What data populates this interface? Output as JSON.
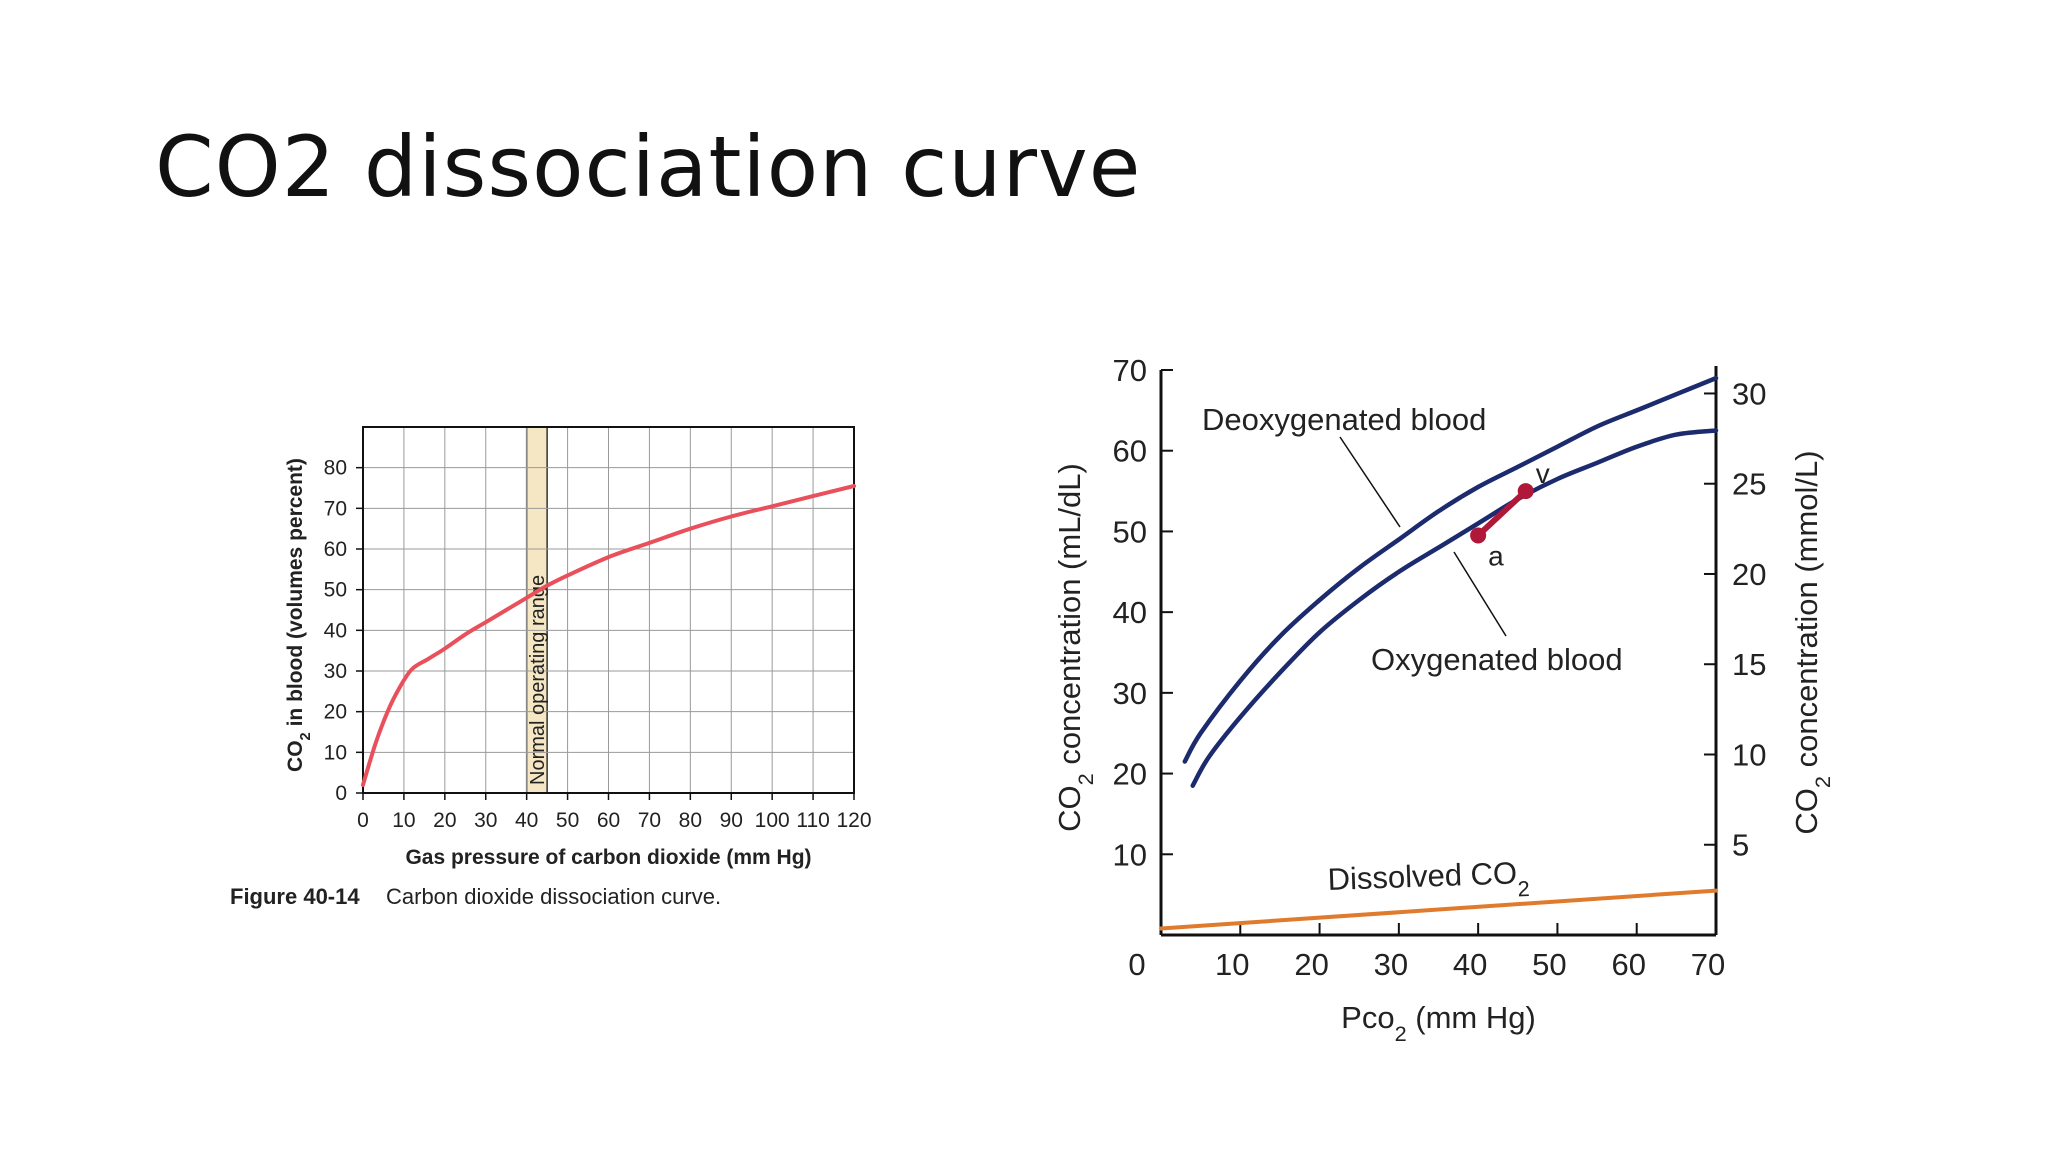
{
  "slide": {
    "title": "CO2 dissociation curve"
  },
  "figure_left": {
    "caption_label": "Figure 40-14",
    "caption_text": "Carbon dioxide dissociation curve."
  },
  "chart_data": [
    {
      "type": "line",
      "xlabel": "Gas pressure of carbon dioxide (mm Hg)",
      "ylabel": "CO2 in blood (volumes percent)",
      "xlim": [
        0,
        120
      ],
      "ylim": [
        0,
        90
      ],
      "xticks": [
        0,
        10,
        20,
        30,
        40,
        50,
        60,
        70,
        80,
        90,
        100,
        110,
        120
      ],
      "yticks": [
        0,
        10,
        20,
        30,
        40,
        50,
        60,
        70,
        80
      ],
      "grid": true,
      "series": [
        {
          "values_x": [
            0,
            3,
            6,
            9,
            12,
            16,
            20,
            25,
            30,
            35,
            40,
            45,
            50,
            60,
            70,
            80,
            90,
            100,
            110,
            120
          ],
          "values_y": [
            2,
            12,
            20,
            26,
            30.5,
            33,
            35.5,
            39,
            42,
            45,
            48,
            51,
            53.5,
            58,
            61.5,
            65,
            68,
            70.5,
            73,
            75.5
          ],
          "color": "#e8505b"
        }
      ],
      "annotations": [
        {
          "text": "Normal operating range",
          "x_range": [
            40,
            45
          ]
        }
      ]
    },
    {
      "type": "line",
      "xlabel": "Pco2 (mm Hg)",
      "ylabel": "CO2 concentration (mL/dL)",
      "ylabel_right": "CO2 concentration (mmol/L)",
      "xlim": [
        0,
        70
      ],
      "ylim": [
        0,
        70
      ],
      "xticks": [
        0,
        10,
        20,
        30,
        40,
        50,
        60,
        70
      ],
      "yticks": [
        10,
        20,
        30,
        40,
        50,
        60,
        70
      ],
      "yticks_right": [
        5,
        10,
        15,
        20,
        25,
        30
      ],
      "series": [
        {
          "name": "Deoxygenated blood",
          "color": "#1c2a6e",
          "values_x": [
            3,
            5,
            10,
            15,
            20,
            25,
            30,
            35,
            40,
            45,
            50,
            55,
            60,
            65,
            70
          ],
          "values_y": [
            21.5,
            25,
            31.5,
            37,
            41.5,
            45.5,
            49,
            52.5,
            55.5,
            58,
            60.5,
            63,
            65,
            67,
            69
          ]
        },
        {
          "name": "Oxygenated blood",
          "color": "#1c2a6e",
          "values_x": [
            4,
            6,
            10,
            15,
            20,
            25,
            30,
            35,
            40,
            45,
            50,
            55,
            60,
            65,
            70
          ],
          "values_y": [
            18.5,
            22,
            27,
            32.5,
            37.5,
            41.5,
            45,
            48,
            51,
            54,
            56.5,
            58.5,
            60.5,
            62,
            62.5
          ]
        },
        {
          "name": "Dissolved CO2",
          "color": "#e07a2c",
          "values_x": [
            0,
            70
          ],
          "values_y": [
            0.8,
            5.5
          ]
        }
      ],
      "points": [
        {
          "label": "a",
          "x": 40,
          "y": 49.5
        },
        {
          "label": "v",
          "x": 46,
          "y": 55
        }
      ],
      "point_color": "#b0183a",
      "series_labels": {
        "deoxy": "Deoxygenated blood",
        "oxy": "Oxygenated blood",
        "dissolved": "Dissolved CO2"
      }
    }
  ]
}
